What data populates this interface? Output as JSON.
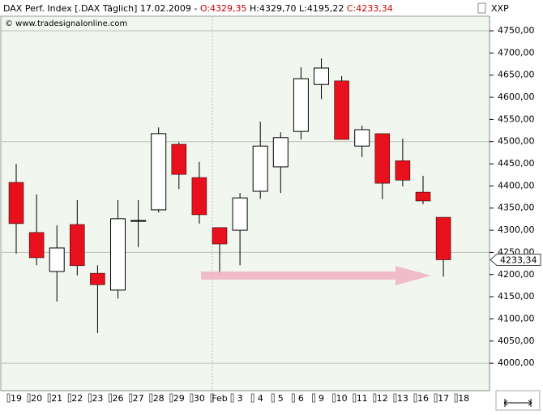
{
  "chart_data": {
    "type": "candlestick",
    "title_parts": [
      {
        "text": "DAX Perf. Index [.DAX  Täglich] 17.02.2009 - ",
        "color": "#000000"
      },
      {
        "text": "O:4329,35",
        "color": "#d00000"
      },
      {
        "text": " H:4329,70 L:4195,22 ",
        "color": "#000000"
      },
      {
        "text": "C:4233,34",
        "color": "#d00000"
      }
    ],
    "subtitle": "© www.tradesignalonline.com",
    "symbol_label": "XXP",
    "categories": [
      "19",
      "20",
      "21",
      "22",
      "23",
      "26",
      "27",
      "28",
      "29",
      "30",
      "Feb",
      "3",
      "4",
      "5",
      "6",
      "9",
      "10",
      "11",
      "12",
      "13",
      "16",
      "17",
      "18"
    ],
    "open": [
      4408,
      4295,
      4207,
      4313,
      4203,
      4165,
      4322,
      4346,
      4494,
      4419,
      4306,
      4300,
      4388,
      4443,
      4523,
      4629,
      4637,
      4490,
      4518,
      4457,
      4386,
      4329.35,
      null
    ],
    "high": [
      4450,
      4381,
      4311,
      4368,
      4221,
      4368,
      4368,
      4532,
      4499,
      4454,
      4306,
      4384,
      4545,
      4521,
      4668,
      4688,
      4648,
      4536,
      4518,
      4507,
      4423,
      4329.7,
      null
    ],
    "low": [
      4247,
      4221,
      4139,
      4198,
      4068,
      4146,
      4262,
      4340,
      4393,
      4315,
      4198,
      4221,
      4371,
      4384,
      4505,
      4596,
      4505,
      4465,
      4370,
      4399,
      4359,
      4195.22,
      null
    ],
    "close": [
      4315,
      4238,
      4260,
      4220,
      4177,
      4326,
      4322,
      4518,
      4426,
      4335,
      4269,
      4373,
      4490,
      4509,
      4642,
      4666,
      4505,
      4527,
      4406,
      4413,
      4366,
      4233.34,
      null
    ],
    "up_color": "#ffffff",
    "down_color": "#e8101c",
    "last_price": {
      "value": 4233.34,
      "label": "4233,34"
    },
    "ylim": [
      3938,
      4783
    ],
    "yticks": [
      {
        "value": 4000,
        "label": "4000,00"
      },
      {
        "value": 4050,
        "label": "4050,00"
      },
      {
        "value": 4100,
        "label": "4100,00"
      },
      {
        "value": 4150,
        "label": "4150,00"
      },
      {
        "value": 4200,
        "label": "4200,00"
      },
      {
        "value": 4250,
        "label": "4250,00"
      },
      {
        "value": 4300,
        "label": "4300,00"
      },
      {
        "value": 4350,
        "label": "4350,00"
      },
      {
        "value": 4400,
        "label": "4400,00"
      },
      {
        "value": 4450,
        "label": "4450,00"
      },
      {
        "value": 4500,
        "label": "4500,00"
      },
      {
        "value": 4550,
        "label": "4550,00"
      },
      {
        "value": 4600,
        "label": "4600,00"
      },
      {
        "value": 4650,
        "label": "4650,00"
      },
      {
        "value": 4700,
        "label": "4700,00"
      },
      {
        "value": 4750,
        "label": "4750,00"
      }
    ],
    "grid": true
  }
}
